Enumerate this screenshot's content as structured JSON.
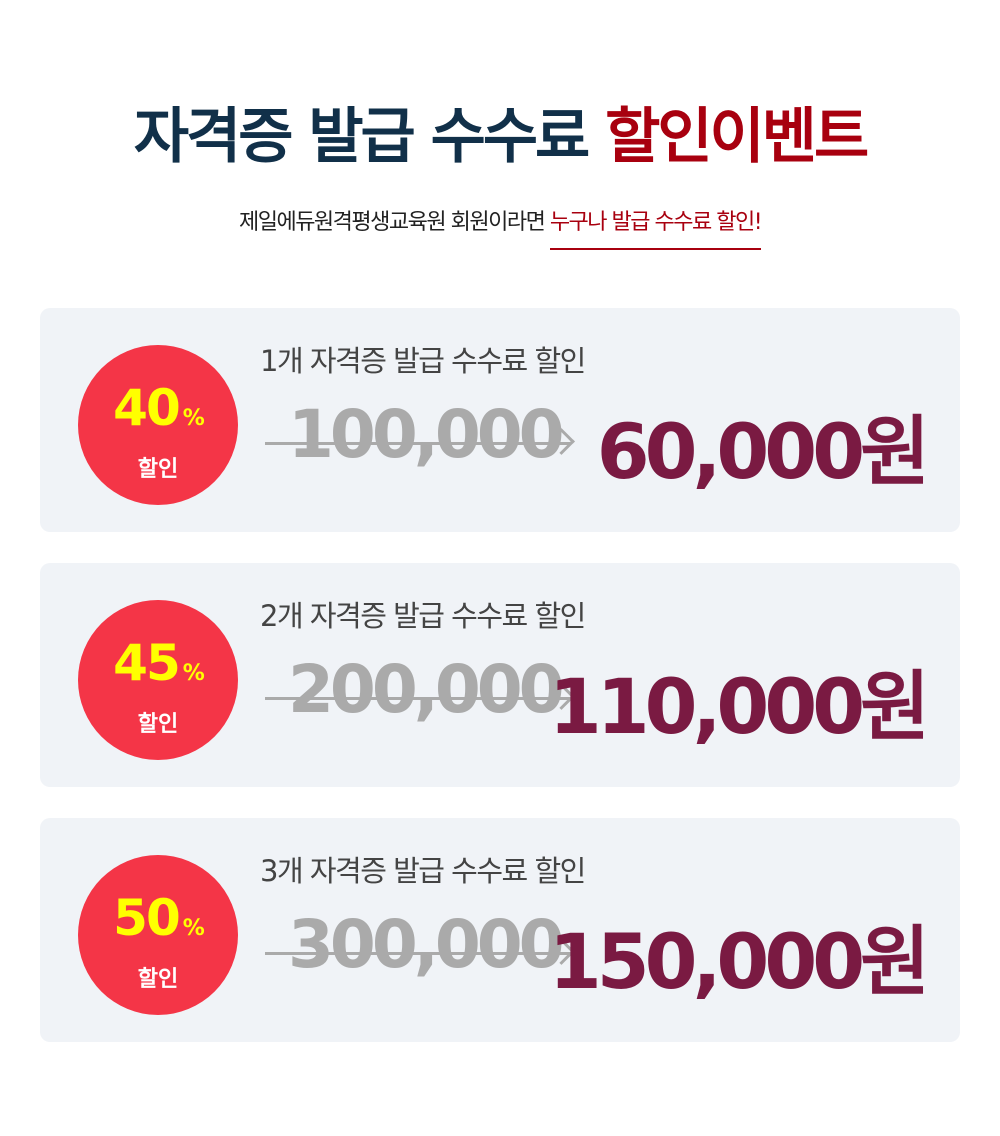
{
  "header": {
    "title_main": "자격증 발급 수수료",
    "title_highlight": "할인이벤트",
    "subtitle_main": "제일에듀원격평생교육원 회원이라면",
    "subtitle_highlight": "누구나 발급 수수료 할인!"
  },
  "colors": {
    "title": "#113049",
    "accent": "#a8000f",
    "badge": "#f43547",
    "badge_text": "#ffff00",
    "new_price": "#7a1a42",
    "old_price": "#aaaaaa",
    "card_bg": "#f0f3f7"
  },
  "offers": [
    {
      "percent": "40",
      "percent_sign": "%",
      "badge_label": "할인",
      "title": "1개 자격증 발급 수수료 할인",
      "old_price": "100,000",
      "new_price": "60,000원"
    },
    {
      "percent": "45",
      "percent_sign": "%",
      "badge_label": "할인",
      "title": "2개 자격증 발급 수수료 할인",
      "old_price": "200,000",
      "new_price": "110,000원"
    },
    {
      "percent": "50",
      "percent_sign": "%",
      "badge_label": "할인",
      "title": "3개 자격증 발급 수수료 할인",
      "old_price": "300,000",
      "new_price": "150,000원"
    }
  ]
}
